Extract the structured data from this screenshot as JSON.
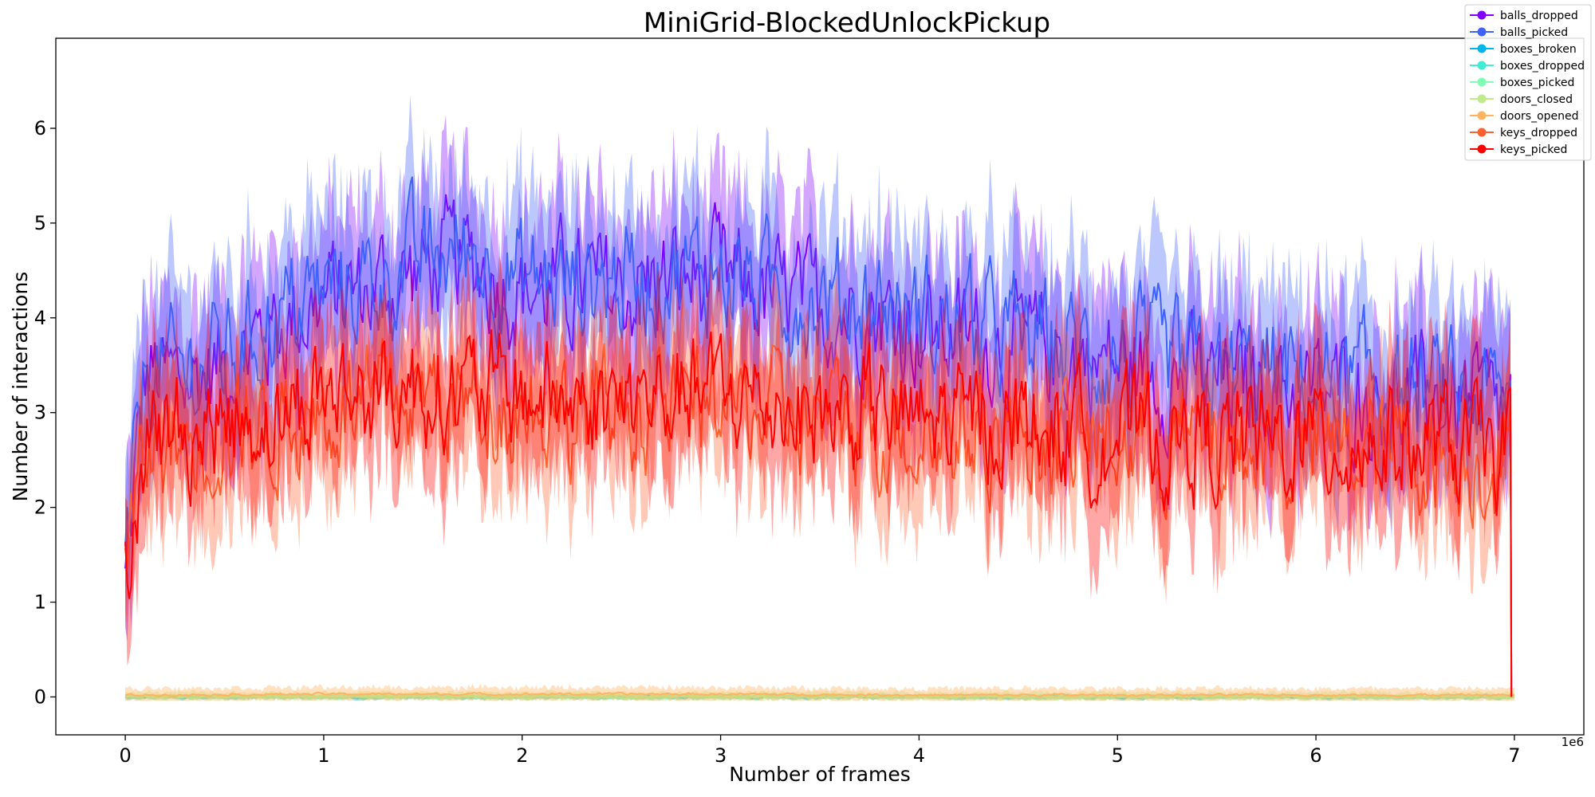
{
  "chart_data": {
    "type": "line",
    "title": "MiniGrid-BlockedUnlockPickup",
    "xlabel": "Number of frames",
    "ylabel": "Number of interactions",
    "x_offset_label": "1e6",
    "xlim": [
      -0.35,
      7.35
    ],
    "ylim": [
      -0.4,
      6.95
    ],
    "x_ticks": [
      0,
      1,
      2,
      3,
      4,
      5,
      6,
      7
    ],
    "y_ticks": [
      0,
      1,
      2,
      3,
      4,
      5,
      6
    ],
    "x_tick_labels": [
      "0",
      "1",
      "2",
      "3",
      "4",
      "5",
      "6",
      "7"
    ],
    "y_tick_labels": [
      "0",
      "1",
      "2",
      "3",
      "4",
      "5",
      "6"
    ],
    "legend_position": "top-right",
    "series": [
      {
        "name": "balls_dropped",
        "color": "#8000ff",
        "x": [
          0,
          0.1,
          0.25,
          0.5,
          0.75,
          1.0,
          1.25,
          1.5,
          1.75,
          2.0,
          2.25,
          2.5,
          2.75,
          3.0,
          3.25,
          3.5,
          3.75,
          4.0,
          4.25,
          4.5,
          4.75,
          5.0,
          5.25,
          5.5,
          5.75,
          6.0,
          6.25,
          6.5,
          6.75,
          6.98
        ],
        "values": [
          1.2,
          3.4,
          3.3,
          3.5,
          3.9,
          4.2,
          4.3,
          4.5,
          4.6,
          4.3,
          4.3,
          4.3,
          4.4,
          4.4,
          4.2,
          4.1,
          4.1,
          3.9,
          3.8,
          3.7,
          3.6,
          3.5,
          3.4,
          3.3,
          3.3,
          3.2,
          3.2,
          3.1,
          3.1,
          3.0
        ],
        "band": 0.75
      },
      {
        "name": "balls_picked",
        "color": "#4062fa",
        "x": [
          0,
          0.1,
          0.25,
          0.5,
          0.75,
          1.0,
          1.25,
          1.5,
          1.75,
          2.0,
          2.25,
          2.5,
          2.75,
          3.0,
          3.25,
          3.5,
          3.75,
          4.0,
          4.25,
          4.5,
          4.75,
          5.0,
          5.25,
          5.5,
          5.75,
          6.0,
          6.25,
          6.5,
          6.75,
          6.98
        ],
        "values": [
          1.3,
          3.5,
          3.4,
          3.6,
          4.0,
          4.3,
          4.4,
          4.6,
          4.7,
          4.4,
          4.4,
          4.4,
          4.5,
          4.5,
          4.3,
          4.2,
          4.2,
          4.0,
          3.9,
          3.8,
          3.7,
          3.6,
          3.5,
          3.4,
          3.4,
          3.3,
          3.3,
          3.2,
          3.2,
          3.1
        ],
        "band": 0.75
      },
      {
        "name": "boxes_broken",
        "color": "#00b5eb",
        "x": [
          0,
          7.0
        ],
        "values": [
          0.0,
          0.0
        ],
        "band": 0.02
      },
      {
        "name": "boxes_dropped",
        "color": "#40ecd4",
        "x": [
          0,
          7.0
        ],
        "values": [
          0.0,
          0.0
        ],
        "band": 0.02
      },
      {
        "name": "boxes_picked",
        "color": "#80ffb4",
        "x": [
          0,
          7.0
        ],
        "values": [
          0.0,
          0.0
        ],
        "band": 0.02
      },
      {
        "name": "doors_closed",
        "color": "#c0eb8d",
        "x": [
          0,
          1,
          2,
          3,
          4,
          5,
          6,
          7.0
        ],
        "values": [
          0.01,
          0.01,
          0.01,
          0.01,
          0.01,
          0.01,
          0.01,
          0.01
        ],
        "band": 0.04
      },
      {
        "name": "doors_opened",
        "color": "#ffb360",
        "x": [
          0,
          1,
          2,
          3,
          4,
          5,
          6,
          7.0
        ],
        "values": [
          0.02,
          0.03,
          0.03,
          0.03,
          0.02,
          0.02,
          0.02,
          0.02
        ],
        "band": 0.07
      },
      {
        "name": "keys_dropped",
        "color": "#ff6230",
        "x": [
          0,
          0.1,
          0.25,
          0.5,
          0.75,
          1.0,
          1.25,
          1.5,
          1.75,
          2.0,
          2.25,
          2.5,
          2.75,
          3.0,
          3.25,
          3.5,
          3.75,
          4.0,
          4.25,
          4.5,
          4.75,
          5.0,
          5.25,
          5.5,
          5.75,
          6.0,
          6.25,
          6.5,
          6.75,
          6.98
        ],
        "values": [
          1.3,
          2.6,
          2.7,
          2.8,
          2.9,
          3.0,
          3.1,
          3.2,
          3.1,
          3.1,
          3.0,
          3.0,
          3.1,
          3.1,
          3.0,
          2.9,
          2.9,
          2.8,
          2.8,
          2.8,
          2.7,
          2.7,
          2.7,
          2.6,
          2.6,
          2.6,
          2.6,
          2.6,
          2.5,
          2.5
        ],
        "band": 0.65
      },
      {
        "name": "keys_picked",
        "color": "#ff0000",
        "x": [
          0,
          0.1,
          0.25,
          0.5,
          0.75,
          1.0,
          1.25,
          1.5,
          1.75,
          2.0,
          2.25,
          2.5,
          2.75,
          3.0,
          3.25,
          3.5,
          3.75,
          4.0,
          4.25,
          4.5,
          4.75,
          5.0,
          5.25,
          5.5,
          5.75,
          6.0,
          6.25,
          6.5,
          6.75,
          6.98
        ],
        "values": [
          1.4,
          2.8,
          2.8,
          2.9,
          3.0,
          3.2,
          3.2,
          3.3,
          3.2,
          3.2,
          3.1,
          3.1,
          3.2,
          3.2,
          3.1,
          3.0,
          3.0,
          2.9,
          2.9,
          2.9,
          2.8,
          2.8,
          2.7,
          2.7,
          2.7,
          2.7,
          2.7,
          2.7,
          2.6,
          2.6
        ],
        "band": 0.7
      }
    ]
  }
}
